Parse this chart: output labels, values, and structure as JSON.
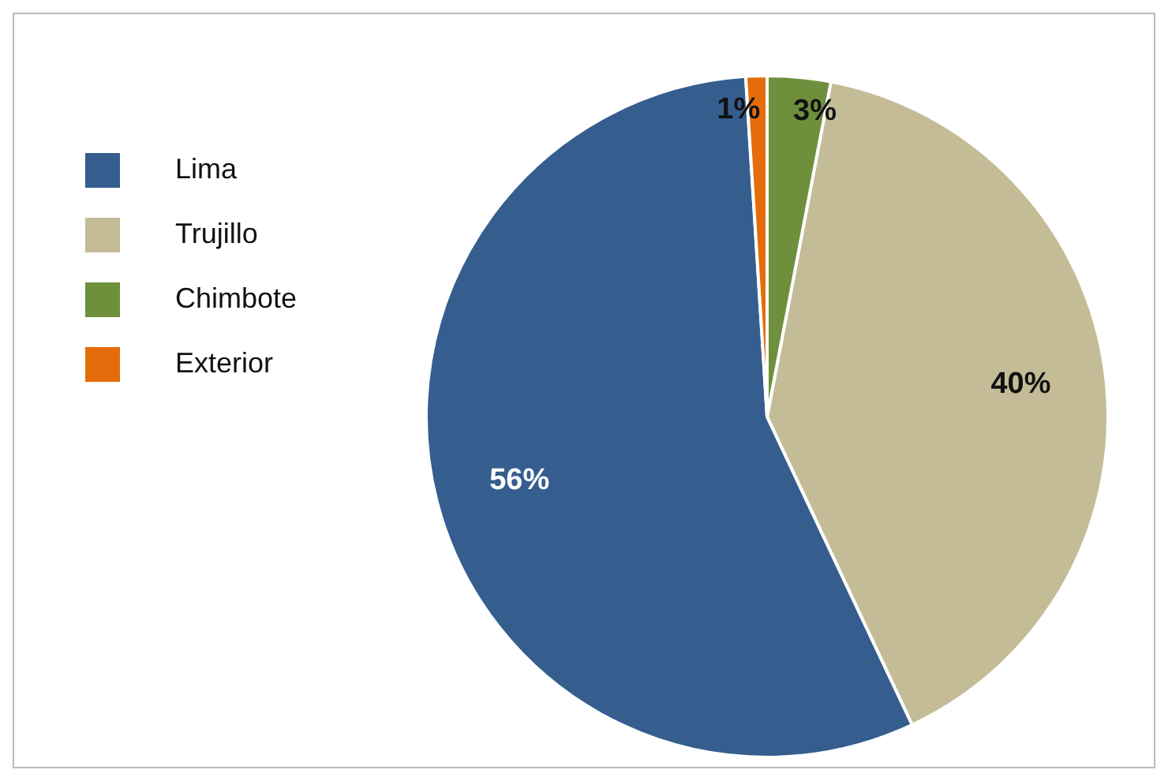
{
  "chart_data": {
    "type": "pie",
    "categories": [
      "Lima",
      "Trujillo",
      "Chimbote",
      "Exterior"
    ],
    "values": [
      56,
      40,
      3,
      1
    ],
    "colors": [
      "#355e8f",
      "#c4bc97",
      "#6e8f3c",
      "#e46c0a"
    ],
    "value_labels": [
      "56%",
      "40%",
      "3%",
      "1%"
    ],
    "legend": "left"
  }
}
